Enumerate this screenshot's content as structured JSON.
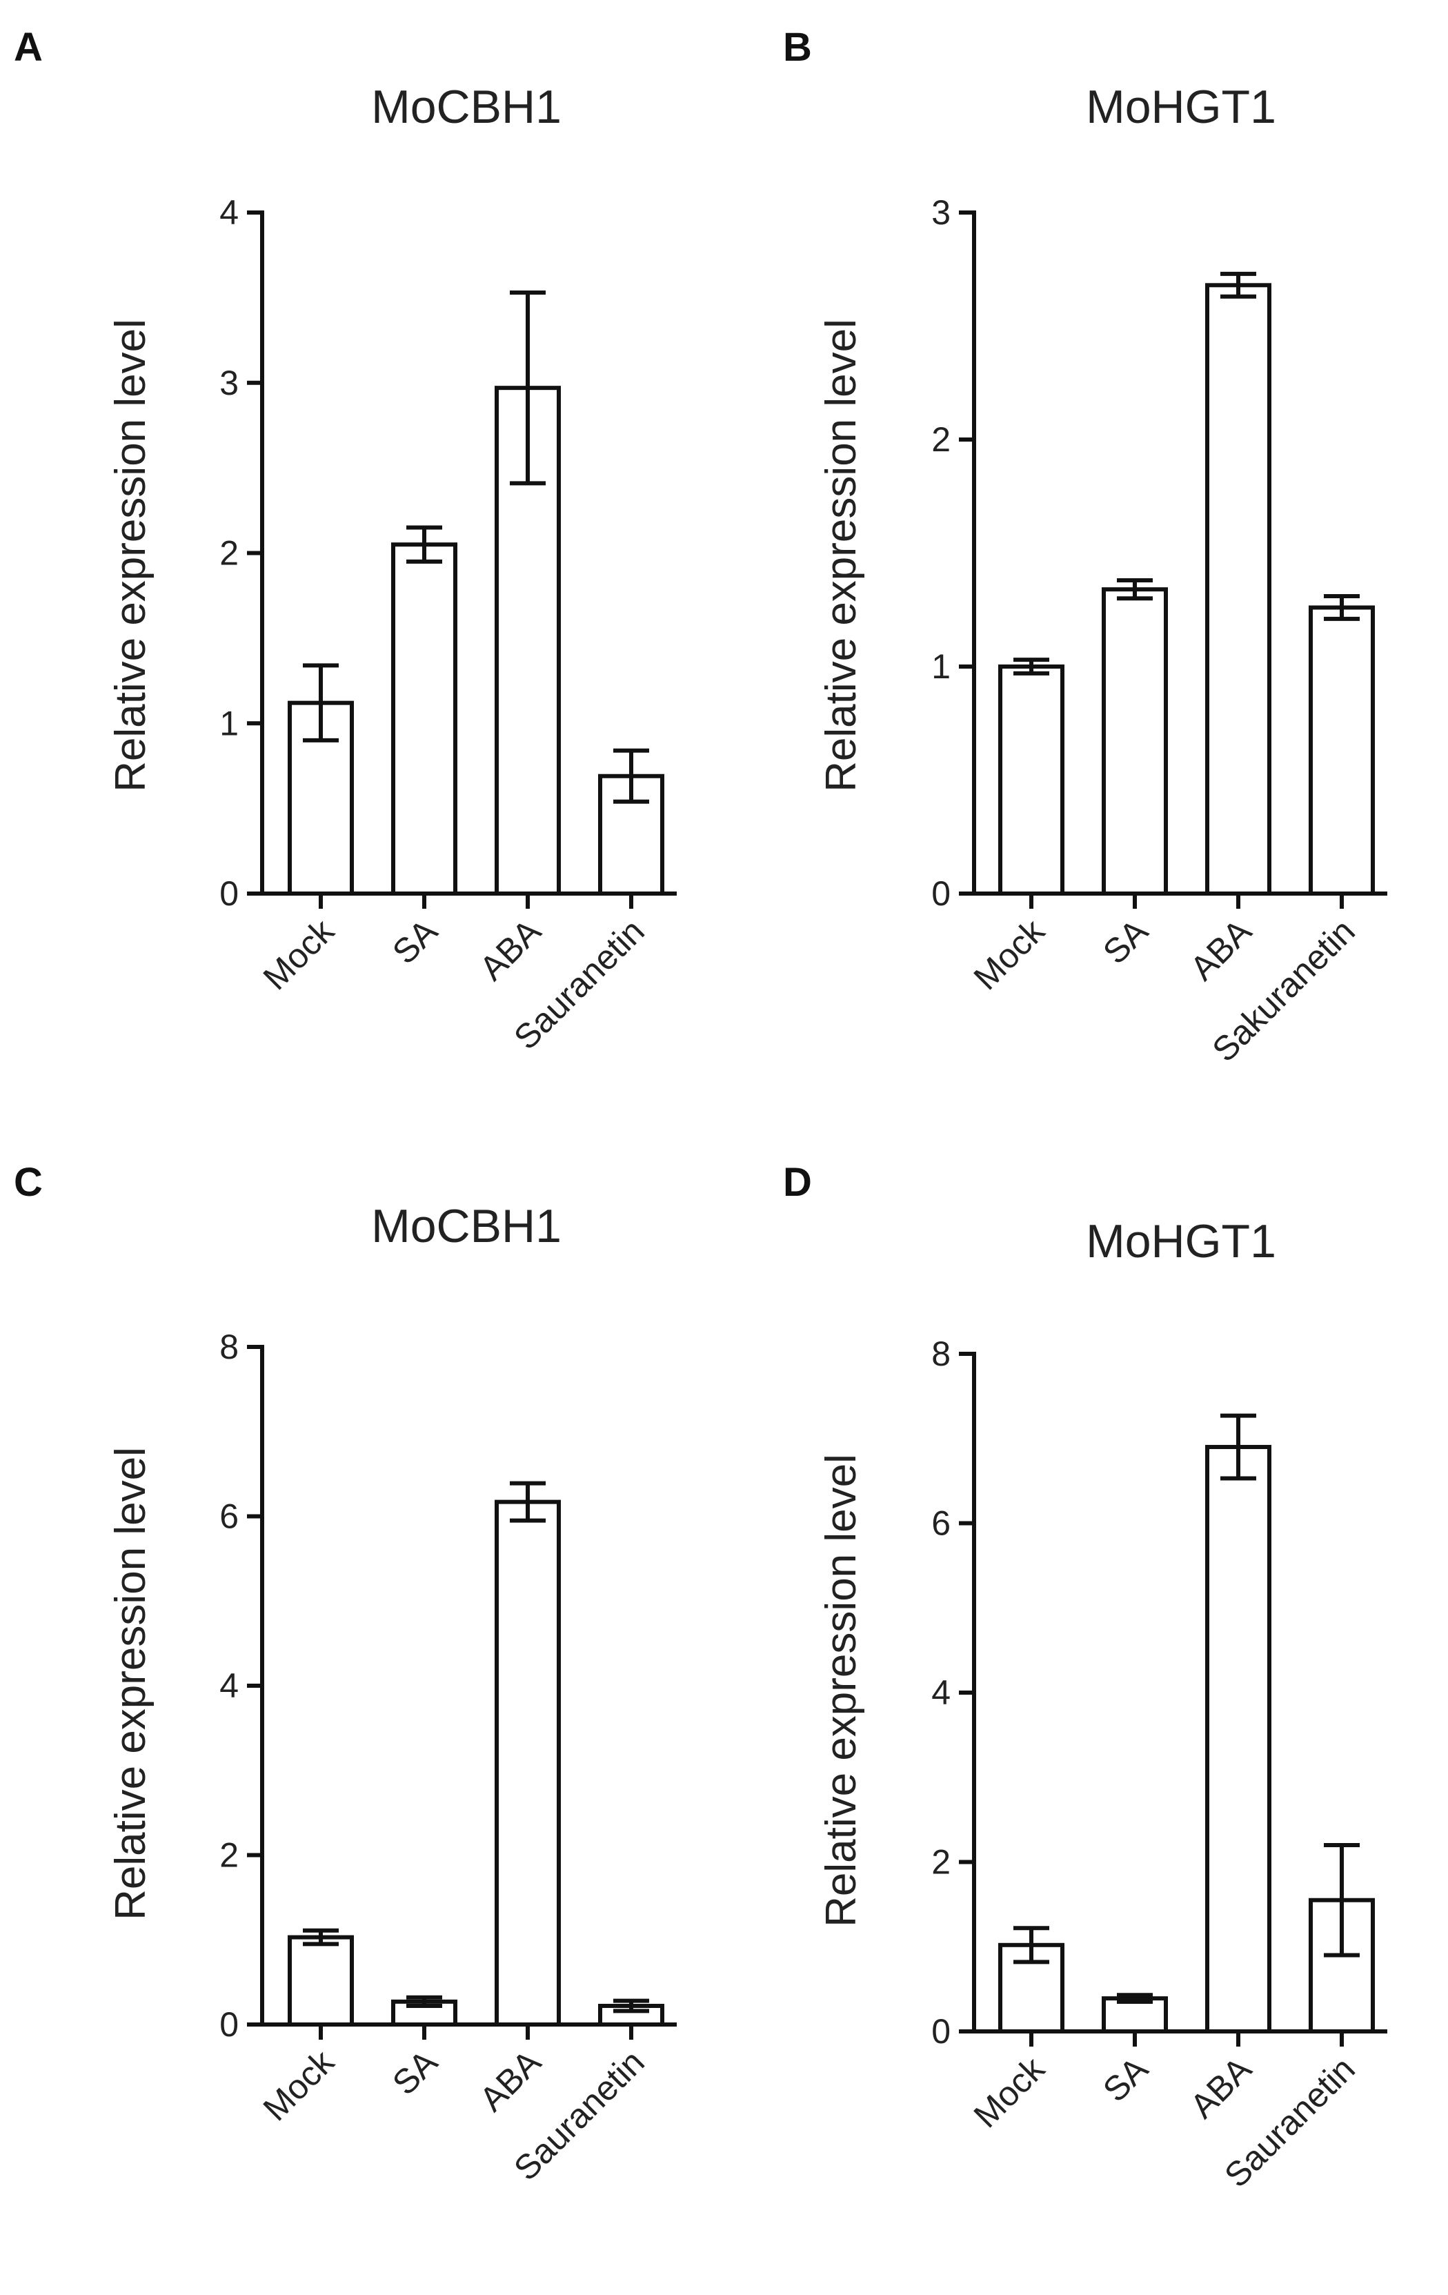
{
  "chart_data": [
    {
      "panel": "A",
      "type": "bar",
      "title": "MoCBH1",
      "ylabel": "Relative expression level",
      "xlabel": "",
      "categories": [
        "Mock",
        "SA",
        "ABA",
        "Sauranetin"
      ],
      "values": [
        1.12,
        2.05,
        2.97,
        0.69
      ],
      "errors": [
        0.22,
        0.1,
        0.56,
        0.15
      ],
      "ylim": [
        0,
        4
      ],
      "yticks": [
        0,
        1,
        2,
        3,
        4
      ],
      "grid": false
    },
    {
      "panel": "B",
      "type": "bar",
      "title": "MoHGT1",
      "ylabel": "Relative expression level",
      "xlabel": "",
      "categories": [
        "Mock",
        "SA",
        "ABA",
        "Sakuranetin"
      ],
      "values": [
        1.0,
        1.34,
        2.68,
        1.26
      ],
      "errors": [
        0.03,
        0.04,
        0.05,
        0.05
      ],
      "ylim": [
        0,
        3
      ],
      "yticks": [
        0,
        1,
        2,
        3
      ],
      "grid": false
    },
    {
      "panel": "C",
      "type": "bar",
      "title": "MoCBH1",
      "ylabel": "Relative expression level",
      "xlabel": "",
      "categories": [
        "Mock",
        "SA",
        "ABA",
        "Sauranetin"
      ],
      "values": [
        1.03,
        0.27,
        6.17,
        0.22
      ],
      "errors": [
        0.08,
        0.05,
        0.22,
        0.06
      ],
      "ylim": [
        0,
        8
      ],
      "yticks": [
        0,
        2,
        4,
        6,
        8
      ],
      "grid": false
    },
    {
      "panel": "D",
      "type": "bar",
      "title": "MoHGT1",
      "ylabel": "Relative expression level",
      "xlabel": "",
      "categories": [
        "Mock",
        "SA",
        "ABA",
        "Sauranetin"
      ],
      "values": [
        1.02,
        0.39,
        6.9,
        1.55
      ],
      "errors": [
        0.2,
        0.04,
        0.37,
        0.65
      ],
      "ylim": [
        0,
        8
      ],
      "yticks": [
        0,
        2,
        4,
        6,
        8
      ],
      "grid": false
    }
  ]
}
